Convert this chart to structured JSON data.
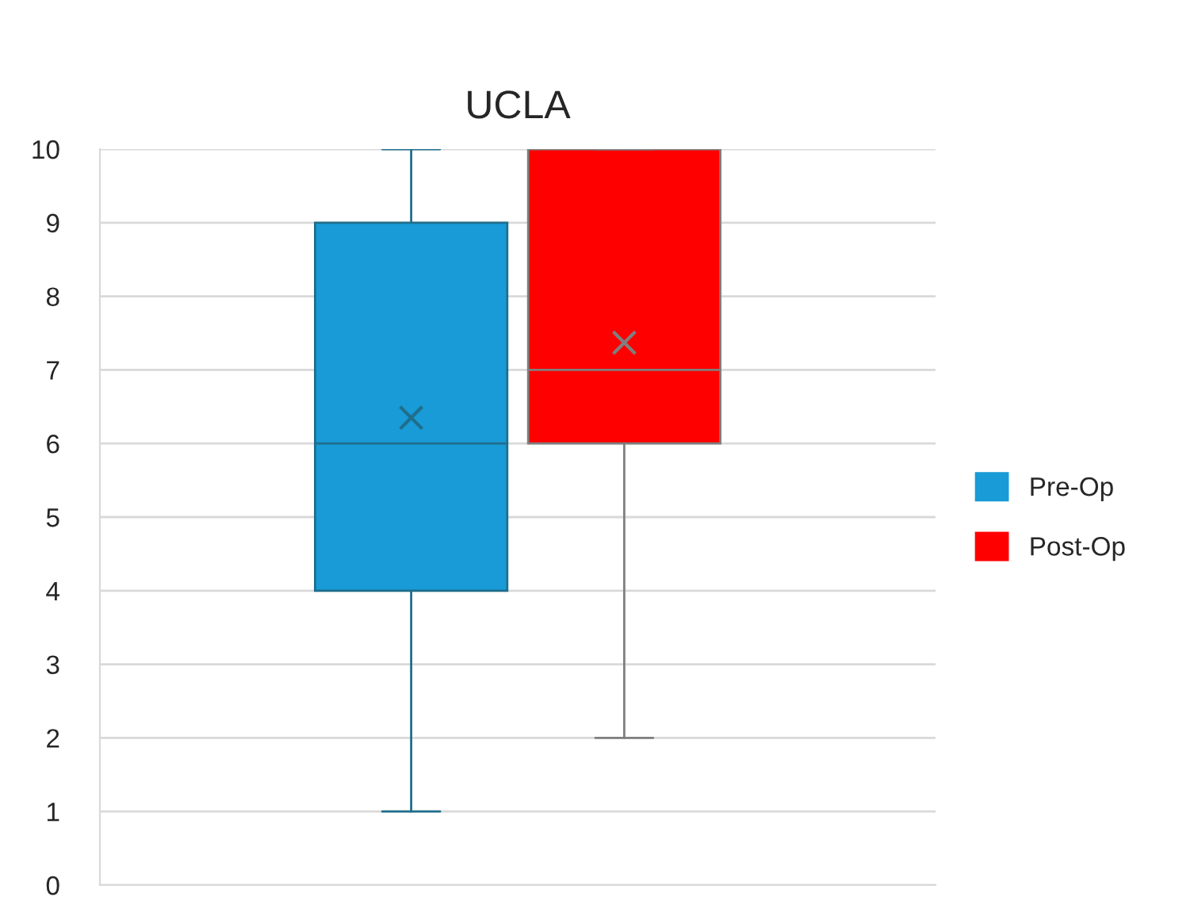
{
  "chart_data": {
    "type": "box",
    "title": "UCLA",
    "categories": [
      null
    ],
    "series": [
      {
        "name": "Pre-Op",
        "color": "#189bd6",
        "boxes": [
          {
            "low": 1,
            "q1": 4,
            "median": 6,
            "q3": 9,
            "high": 10,
            "mean": 6.35
          }
        ]
      },
      {
        "name": "Post-Op",
        "color": "#ff0000",
        "boxes": [
          {
            "low": 2,
            "q1": 6,
            "median": 7,
            "q3": 10,
            "high": 10,
            "mean": 7.37
          }
        ]
      }
    ],
    "ylim": [
      0,
      10
    ],
    "yticks": [
      0,
      1,
      2,
      3,
      4,
      5,
      6,
      7,
      8,
      9,
      10
    ],
    "grid": "y",
    "legend": "right",
    "marker": "cross"
  }
}
